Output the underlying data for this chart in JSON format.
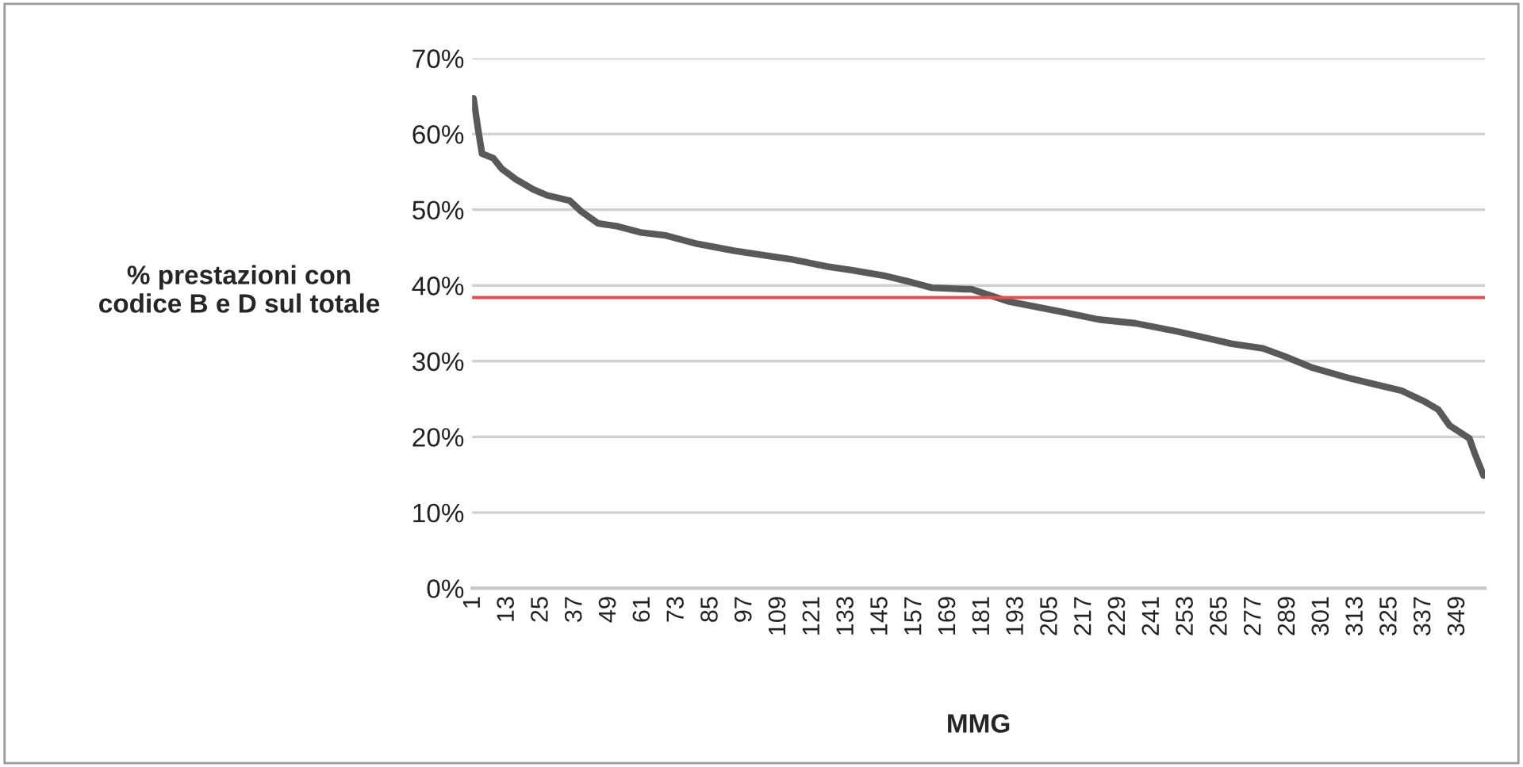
{
  "chart_data": {
    "type": "line",
    "xlabel": "MMG",
    "ylabel": "% prestazioni con\ncodice B e D sul totale",
    "series": [
      {
        "color": "#595959",
        "x": [
          1,
          2.5,
          4,
          8,
          11,
          16,
          22,
          27,
          35,
          39,
          45,
          52,
          60,
          69,
          80,
          93,
          105,
          114,
          126,
          135,
          146,
          156,
          163,
          175,
          177,
          190,
          209,
          222,
          235,
          250,
          269,
          280,
          288,
          297,
          310,
          320,
          329,
          337,
          342,
          346,
          353,
          355,
          358
        ],
        "values": [
          64.7,
          60.9,
          57.4,
          56.8,
          55.4,
          54.0,
          52.7,
          51.9,
          51.2,
          49.8,
          48.2,
          47.8,
          47.0,
          46.6,
          45.5,
          44.6,
          43.9,
          43.4,
          42.5,
          42.0,
          41.3,
          40.4,
          39.7,
          39.5,
          39.5,
          37.9,
          36.5,
          35.5,
          35.0,
          33.9,
          32.3,
          31.7,
          30.6,
          29.2,
          27.8,
          26.9,
          26.1,
          24.7,
          23.6,
          21.5,
          19.8,
          17.7,
          14.9
        ]
      }
    ],
    "xlim": [
      0.5,
      358.5
    ],
    "xticks": [
      1,
      13,
      25,
      37,
      49,
      61,
      73,
      85,
      97,
      109,
      121,
      133,
      145,
      157,
      169,
      181,
      193,
      205,
      217,
      229,
      241,
      253,
      265,
      277,
      289,
      301,
      313,
      325,
      337,
      349
    ],
    "ylim": [
      0,
      70
    ],
    "yticks": [
      {
        "value": 0,
        "label": "0%"
      },
      {
        "value": 10,
        "label": "10%"
      },
      {
        "value": 20,
        "label": "20%"
      },
      {
        "value": 30,
        "label": "30%"
      },
      {
        "value": 40,
        "label": "40%"
      },
      {
        "value": 50,
        "label": "50%"
      },
      {
        "value": 60,
        "label": "60%"
      },
      {
        "value": 70,
        "label": "70%"
      }
    ],
    "ref_lines": [
      {
        "axis": "y",
        "value": 38.4,
        "color": "#d9534f"
      }
    ],
    "grid": "y",
    "line_style": "solid",
    "marker": "none"
  }
}
